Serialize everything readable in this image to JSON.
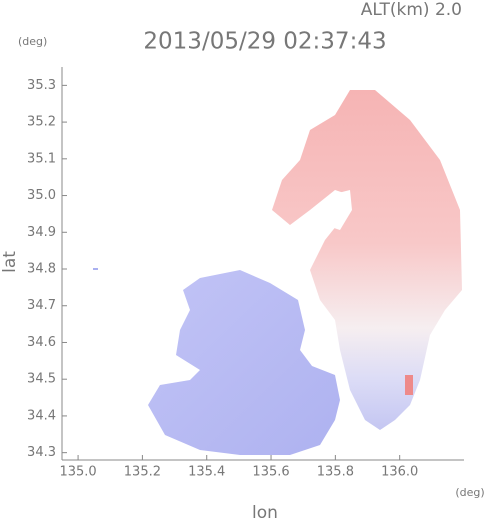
{
  "chart_data": {
    "type": "map",
    "title": "2013/05/29 02:37:43",
    "subtitle": "ALT(km) 2.0",
    "x_label": "lon",
    "y_label": "lat",
    "x_unit": "(deg)",
    "y_unit": "(deg)",
    "xlim": [
      134.95,
      136.2
    ],
    "ylim": [
      34.28,
      35.35
    ],
    "xticks": [
      {
        "value": 135,
        "label": "135.0"
      },
      135.2,
      135.4,
      135.6,
      135.8,
      {
        "value": 136,
        "label": "136.0"
      }
    ],
    "yticks": [
      34.3,
      34.4,
      34.5,
      34.6,
      34.7,
      34.8,
      34.9,
      {
        "value": 35,
        "label": "35.0"
      },
      35.1,
      35.2,
      35.3
    ]
  }
}
